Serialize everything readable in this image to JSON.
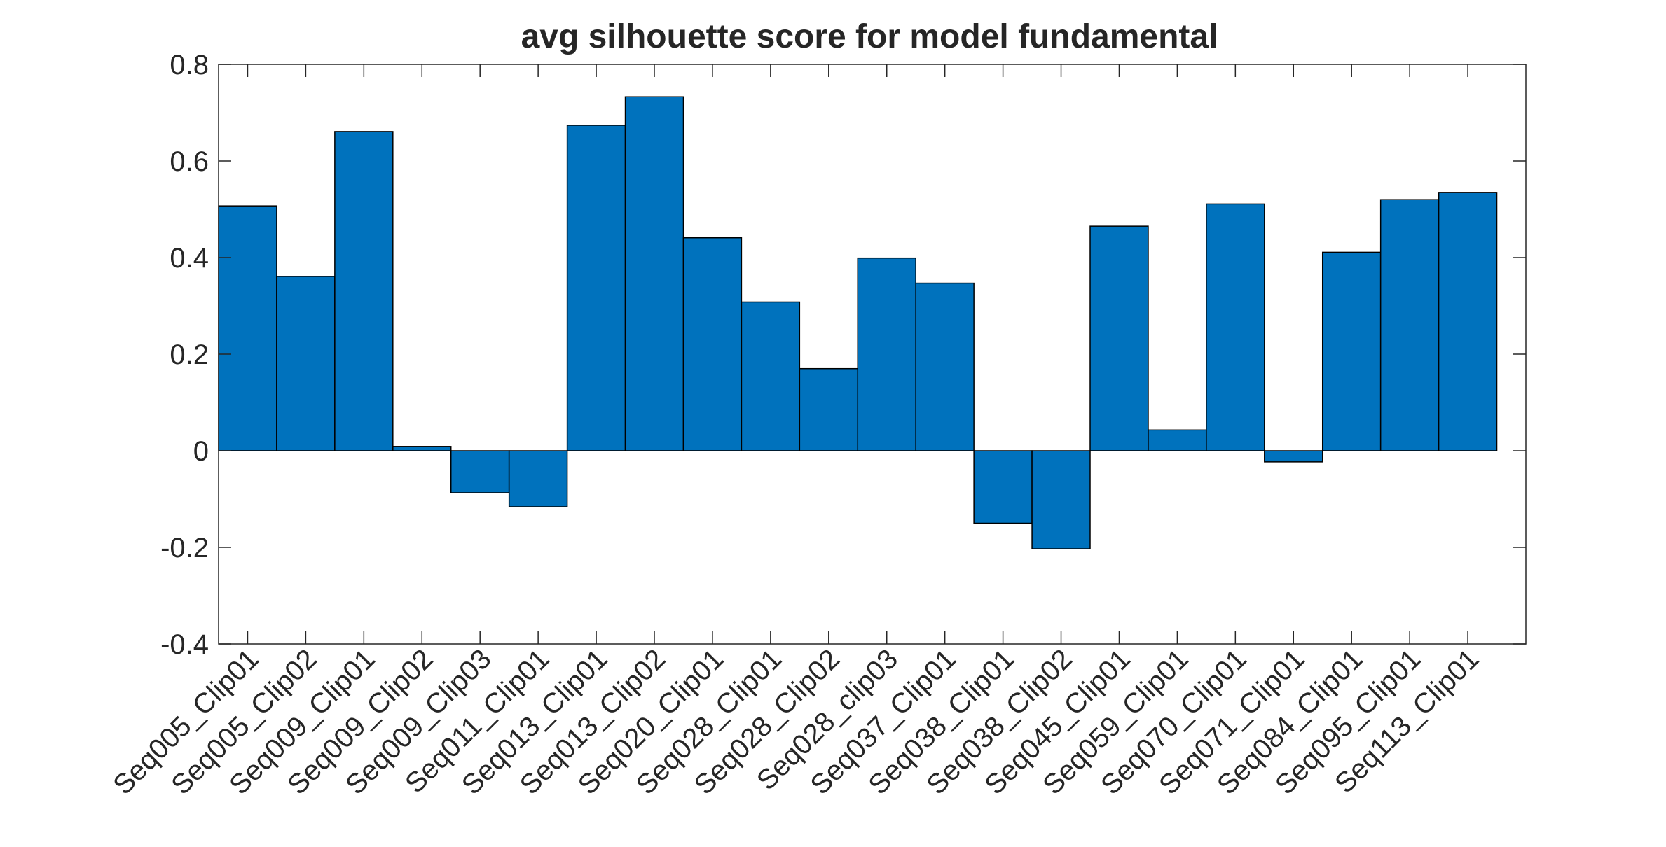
{
  "chart_data": {
    "type": "bar",
    "title": "avg silhouette score for model fundamental",
    "xlabel": "",
    "ylabel": "",
    "ylim": [
      -0.4,
      0.8
    ],
    "yticks": [
      -0.4,
      -0.2,
      0,
      0.2,
      0.4,
      0.6,
      0.8
    ],
    "ytick_labels": [
      "-0.4",
      "-0.2",
      "0",
      "0.2",
      "0.4",
      "0.6",
      "0.8"
    ],
    "bar_color": "#0072bd",
    "grid": false,
    "box": true,
    "categories": [
      "Seq005_Clip01",
      "Seq005_Clip02",
      "Seq009_Clip01",
      "Seq009_Clip02",
      "Seq009_Clip03",
      "Seq011_Clip01",
      "Seq013_Clip01",
      "Seq013_Clip02",
      "Seq020_Clip01",
      "Seq028_Clip01",
      "Seq028_Clip02",
      "Seq028_clip03",
      "Seq037_Clip01",
      "Seq038_Clip01",
      "Seq038_Clip02",
      "Seq045_Clip01",
      "Seq059_Clip01",
      "Seq070_Clip01",
      "Seq071_Clip01",
      "Seq084_Clip01",
      "Seq095_Clip01",
      "Seq113_Clip01"
    ],
    "values": [
      0.507,
      0.361,
      0.661,
      0.009,
      -0.087,
      -0.116,
      0.674,
      0.733,
      0.441,
      0.308,
      0.17,
      0.399,
      0.347,
      -0.15,
      -0.203,
      0.465,
      0.043,
      0.511,
      -0.023,
      0.411,
      0.52,
      0.535
    ]
  }
}
